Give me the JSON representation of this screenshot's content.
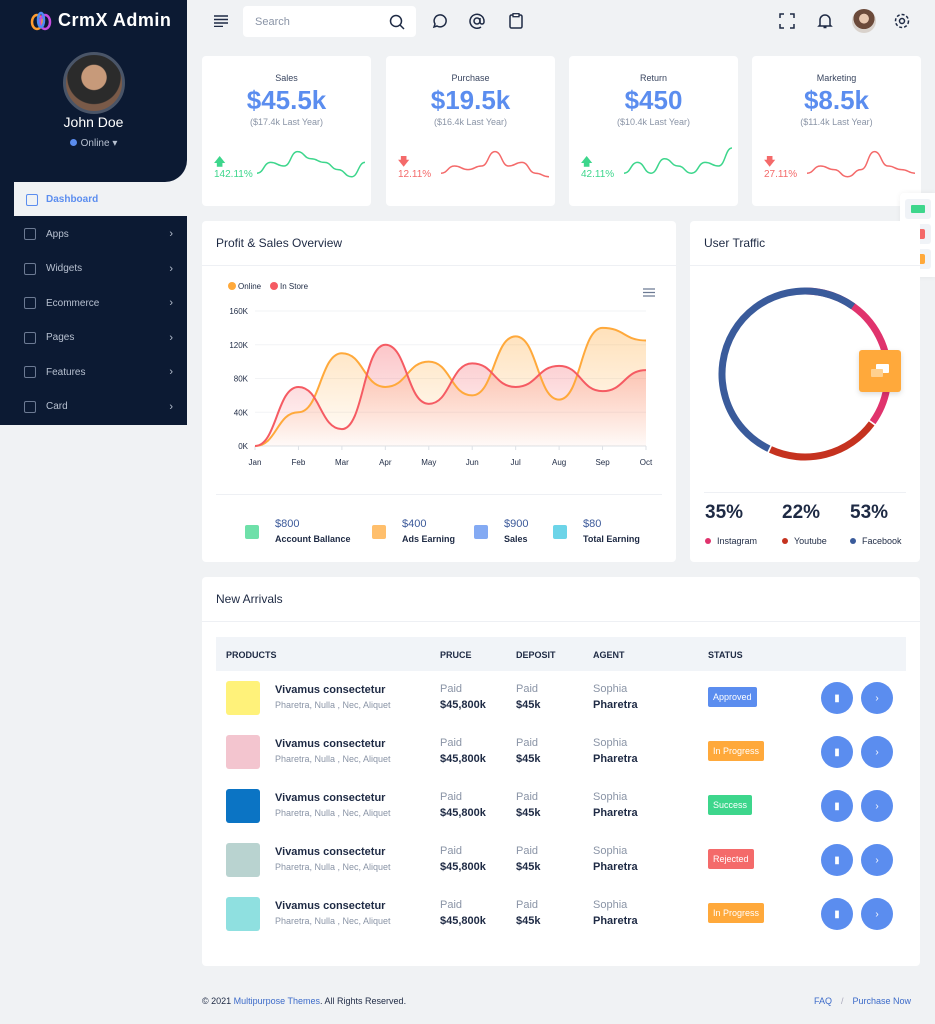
{
  "app": {
    "title": "CrmX Admin"
  },
  "user": {
    "name": "John Doe",
    "status": "Online"
  },
  "sidebar": {
    "items": [
      {
        "label": "Dashboard",
        "icon": "monitor-icon"
      },
      {
        "label": "Apps",
        "icon": "grid-icon"
      },
      {
        "label": "Widgets",
        "icon": "edit-icon"
      },
      {
        "label": "Ecommerce",
        "icon": "cart-icon"
      },
      {
        "label": "Pages",
        "icon": "cast-icon"
      },
      {
        "label": "Features",
        "icon": "box-icon"
      },
      {
        "label": "Card",
        "icon": "credit-card-icon"
      }
    ]
  },
  "header": {
    "search_placeholder": "Search"
  },
  "stats": [
    {
      "label": "Sales",
      "value": "$45.5k",
      "last_year": "($17.4k Last Year)",
      "change": "142.11%",
      "trend": "up",
      "color": "#3dd68c",
      "spark": [
        3,
        6,
        5,
        9,
        7,
        6,
        4,
        2,
        6
      ]
    },
    {
      "label": "Purchase",
      "value": "$19.5k",
      "last_year": "($16.4k Last Year)",
      "change": "12.11%",
      "trend": "down",
      "color": "#f46a6a",
      "spark": [
        3,
        5,
        4,
        5,
        9,
        5,
        6,
        3,
        2
      ]
    },
    {
      "label": "Return",
      "value": "$450",
      "last_year": "($10.4k Last Year)",
      "change": "42.11%",
      "trend": "up",
      "color": "#3dd68c",
      "spark": [
        3,
        6,
        3,
        7,
        5,
        3,
        6,
        5,
        10
      ]
    },
    {
      "label": "Marketing",
      "value": "$8.5k",
      "last_year": "($11.4k Last Year)",
      "change": "27.11%",
      "trend": "down",
      "color": "#f46a6a",
      "spark": [
        3,
        5,
        4,
        2,
        4,
        9,
        5,
        4,
        3
      ]
    }
  ],
  "overview": {
    "title": "Profit & Sales Overview",
    "earnings": [
      {
        "value": "$800",
        "label": "Account Ballance",
        "color": "#3dd68c"
      },
      {
        "value": "$400",
        "label": "Ads Earning",
        "color": "#ffa93b"
      },
      {
        "value": "$900",
        "label": "Sales",
        "color": "#5b8def"
      },
      {
        "value": "$80",
        "label": "Total Earning",
        "color": "#3bc6e0"
      }
    ]
  },
  "chart_data": {
    "type": "area",
    "categories": [
      "Jan",
      "Feb",
      "Mar",
      "Apr",
      "May",
      "Jun",
      "Jul",
      "Aug",
      "Sep",
      "Oct"
    ],
    "yticks": [
      "0K",
      "40K",
      "80K",
      "120K",
      "160K"
    ],
    "ylim": [
      0,
      160000
    ],
    "legend": "top-left",
    "series": [
      {
        "name": "Online",
        "color": "#ffa93b",
        "values": [
          0,
          40000,
          110000,
          70000,
          100000,
          60000,
          130000,
          55000,
          140000,
          125000
        ]
      },
      {
        "name": "In Store",
        "color": "#f55b63",
        "values": [
          0,
          70000,
          20000,
          120000,
          50000,
          98000,
          70000,
          95000,
          65000,
          90000
        ]
      }
    ]
  },
  "traffic": {
    "title": "User Traffic",
    "items": [
      {
        "pct": "35%",
        "label": "Instagram",
        "value": 35,
        "color": "#e0336d"
      },
      {
        "pct": "22%",
        "label": "Youtube",
        "value": 22,
        "color": "#c5321f"
      },
      {
        "pct": "53%",
        "label": "Facebook",
        "value": 53,
        "color": "#3a5b9b"
      }
    ]
  },
  "arrivals": {
    "title": "New Arrivals",
    "headers": [
      "PRODUCTS",
      "PRUCE",
      "DEPOSIT",
      "AGENT",
      "STATUS"
    ],
    "rows": [
      {
        "name": "Vivamus consectetur",
        "sub": "Pharetra, Nulla , Nec, Aliquet",
        "price_l": "Paid",
        "price": "$45,800k",
        "dep_l": "Paid",
        "dep": "$45k",
        "agent": "Sophia",
        "agent2": "Pharetra",
        "status": "Approved",
        "status_color": "#5b8def",
        "img": "#fff27a"
      },
      {
        "name": "Vivamus consectetur",
        "sub": "Pharetra, Nulla , Nec, Aliquet",
        "price_l": "Paid",
        "price": "$45,800k",
        "dep_l": "Paid",
        "dep": "$45k",
        "agent": "Sophia",
        "agent2": "Pharetra",
        "status": "In Progress",
        "status_color": "#ffa93b",
        "img": "#f3c5cf"
      },
      {
        "name": "Vivamus consectetur",
        "sub": "Pharetra, Nulla , Nec, Aliquet",
        "price_l": "Paid",
        "price": "$45,800k",
        "dep_l": "Paid",
        "dep": "$45k",
        "agent": "Sophia",
        "agent2": "Pharetra",
        "status": "Success",
        "status_color": "#3dd68c",
        "img": "#0b74c4"
      },
      {
        "name": "Vivamus consectetur",
        "sub": "Pharetra, Nulla , Nec, Aliquet",
        "price_l": "Paid",
        "price": "$45,800k",
        "dep_l": "Paid",
        "dep": "$45k",
        "agent": "Sophia",
        "agent2": "Pharetra",
        "status": "Rejected",
        "status_color": "#f46a6a",
        "img": "#b9d3d0"
      },
      {
        "name": "Vivamus consectetur",
        "sub": "Pharetra, Nulla , Nec, Aliquet",
        "price_l": "Paid",
        "price": "$45,800k",
        "dep_l": "Paid",
        "dep": "$45k",
        "agent": "Sophia",
        "agent2": "Pharetra",
        "status": "In Progress",
        "status_color": "#ffa93b",
        "img": "#8fe0e0"
      }
    ]
  },
  "footer": {
    "copyright": "© 2021 ",
    "brand": "Multipurpose Themes",
    "rights": ". All Rights Reserved.",
    "faq": "FAQ",
    "sep": "/",
    "purchase": "Purchase Now"
  }
}
